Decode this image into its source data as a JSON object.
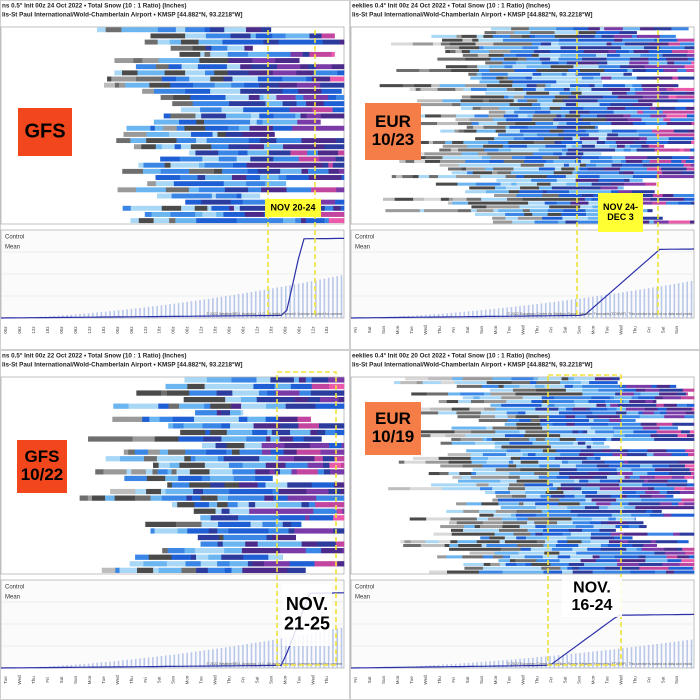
{
  "panels": [
    {
      "header": [
        "ns 0.5° Init 00z 24 Oct 2022 • Total Snow (10 : 1 Ratio) (Inches)",
        "lis-St Paul International/Wold-Chamberlain Airport • KMSP [44.882°N, 93.2218°W]"
      ],
      "label": [
        "GFS"
      ],
      "highlight": [
        "NOV 20-24"
      ],
      "legend": [
        "Control",
        "Mean"
      ],
      "copyright": "© 2022 WeatherBELL Analytics, LLC. All rights reserved. License required for comme",
      "days": [
        "00z",
        "06z",
        "12z",
        "18z",
        "00z",
        "06z",
        "12z",
        "18z",
        "00z",
        "06z",
        "12z",
        "18z",
        "00z",
        "06z",
        "12z",
        "18z",
        "00z",
        "06z",
        "12z",
        "18z",
        "00z",
        "06z",
        "12z",
        "18z"
      ]
    },
    {
      "header": [
        "eeklies 0.4° Init 00z 24 Oct 2022 • Total Snow (10 : 1 Ratio) (Inches)",
        "lis-St Paul International/Wold-Chamberlain Airport • KMSP [44.882°N, 93.2218°W]"
      ],
      "label": [
        "EUR",
        "10/23"
      ],
      "highlight": [
        "NOV 24-",
        "DEC 3"
      ],
      "legend": [
        "Control",
        "Mean"
      ],
      "copyright": "© 2022 European Centre for Medium-Range Weather Forecasts (ECMWF). This service is based on data and produ",
      "days": [
        "Fri",
        "Sat",
        "Sun",
        "Mon",
        "Tue",
        "Wed",
        "Thu",
        "Fri",
        "Sat",
        "Sun",
        "Mon",
        "Tue",
        "Wed",
        "Thu",
        "Fri",
        "Sat",
        "Sun",
        "Mon",
        "Tue",
        "Wed",
        "Thu",
        "Fri",
        "Sat",
        "Sun"
      ]
    },
    {
      "header": [
        "ns 0.5° Init 00z 22 Oct 2022 • Total Snow (10 : 1 Ratio) (Inches)",
        "lis-St Paul International/Wold-Chamberlain Airport • KMSP [44.882°N, 93.2218°W]"
      ],
      "label": [
        "GFS",
        "10/22"
      ],
      "highlight": [
        "NOV.",
        "21-25"
      ],
      "legend": [
        "Control",
        "Mean"
      ],
      "copyright": "© 2022 WeatherBELL Analytics, LLC. All rights reserved. License required for comme",
      "days": [
        "Tue",
        "Wed",
        "Thu",
        "Fri",
        "Sat",
        "Sun",
        "Mon",
        "Tue",
        "Wed",
        "Thu",
        "Fri",
        "Sat",
        "Sun",
        "Mon",
        "Tue",
        "Wed",
        "Thu",
        "Fri",
        "Sat",
        "Sun",
        "Mon",
        "Tue",
        "Wed",
        "Thu"
      ]
    },
    {
      "header": [
        "eeklies 0.4° Init 00z 20 Oct 2022 • Total Snow (10 : 1 Ratio) (Inches)",
        "lis-St Paul International/Wold-Chamberlain Airport • KMSP [44.882°N, 93.2218°W]"
      ],
      "label": [
        "EUR",
        "10/19"
      ],
      "highlight": [
        "NOV.",
        "16-24"
      ],
      "legend": [
        "Control",
        "Mean"
      ],
      "copyright": "© 2022 European Centre for Medium-Range Weather Forecasts (ECMWF). This service is based on data and produ",
      "days": [
        "Fri",
        "Sat",
        "Sun",
        "Mon",
        "Tue",
        "Wed",
        "Thu",
        "Fri",
        "Sat",
        "Sun",
        "Mon",
        "Tue",
        "Wed",
        "Thu",
        "Fri",
        "Sat",
        "Sun",
        "Mon",
        "Tue",
        "Wed",
        "Thu",
        "Fri",
        "Sat",
        "Sun"
      ]
    }
  ]
}
